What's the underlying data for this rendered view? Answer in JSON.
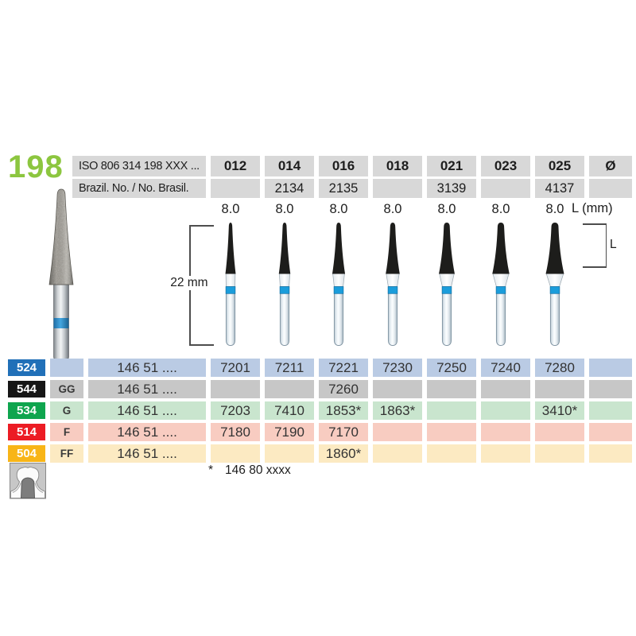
{
  "product": {
    "number": "198"
  },
  "colors": {
    "product_green": "#8CC63F",
    "band_blue": "#1B9DDB",
    "header_gray": "#D8D8D8"
  },
  "header": {
    "iso_label": "ISO 806 314 198 XXX ...",
    "brazil_label": "Brazil. No. / No. Brasil.",
    "diameter_symbol": "Ø",
    "length_unit_label": "L (mm)",
    "sizes": [
      "012",
      "014",
      "016",
      "018",
      "021",
      "023",
      "025"
    ],
    "brazil_numbers": [
      "",
      "2134",
      "2135",
      "",
      "3139",
      "",
      "4137"
    ],
    "lengths": [
      "8.0",
      "8.0",
      "8.0",
      "8.0",
      "8.0",
      "8.0",
      "8.0"
    ]
  },
  "diagram": {
    "shank_dim_label": "22 mm",
    "head_dim_label": "L"
  },
  "table": {
    "rows": [
      {
        "code": "524",
        "grit": "",
        "iso": "146 51 ....",
        "color": "#2170B8",
        "tint": "#BACBE4",
        "values": [
          "7201",
          "7211",
          "7221",
          "7230",
          "7250",
          "7240",
          "7280",
          ""
        ]
      },
      {
        "code": "544",
        "grit": "GG",
        "iso": "146 51 ....",
        "color": "#161616",
        "tint": "#C7C7C7",
        "values": [
          "",
          "",
          "7260",
          "",
          "",
          "",
          "",
          ""
        ]
      },
      {
        "code": "534",
        "grit": "G",
        "iso": "146 51 ....",
        "color": "#0EA54E",
        "tint": "#C9E5CE",
        "values": [
          "7203",
          "7410",
          "1853*",
          "1863*",
          "",
          "",
          "3410*",
          ""
        ]
      },
      {
        "code": "514",
        "grit": "F",
        "iso": "146 51 ....",
        "color": "#EC1C24",
        "tint": "#F8CCC1",
        "values": [
          "7180",
          "7190",
          "7170",
          "",
          "",
          "",
          "",
          ""
        ]
      },
      {
        "code": "504",
        "grit": "FF",
        "iso": "146 51 ....",
        "color": "#F8B517",
        "tint": "#FCEAC2",
        "values": [
          "",
          "",
          "1860*",
          "",
          "",
          "",
          "",
          ""
        ]
      }
    ]
  },
  "footnote": {
    "marker": "*",
    "text": "146 80 xxxx"
  }
}
